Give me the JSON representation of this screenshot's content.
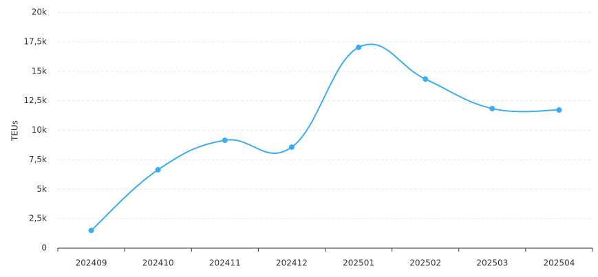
{
  "chart_data": {
    "type": "line",
    "y_label": "TEUs",
    "categories": [
      "202409",
      "202410",
      "202411",
      "202412",
      "202501",
      "202502",
      "202503",
      "202504"
    ],
    "values": [
      1500,
      6650,
      9150,
      8570,
      17030,
      14340,
      11840,
      11720
    ],
    "color": "#38adf3",
    "smooth": true,
    "ylim": [
      0,
      20000
    ],
    "yticks": [
      0,
      {
        "value": 2500,
        "label": "2,5k"
      },
      {
        "value": 5000,
        "label": "5k"
      },
      {
        "value": 7500,
        "label": "7,5k"
      },
      {
        "value": 10000,
        "label": "10k"
      },
      {
        "value": 12500,
        "label": "12,5k"
      },
      {
        "value": 15000,
        "label": "15k"
      },
      {
        "value": 17500,
        "label": "17,5k"
      },
      {
        "value": 20000,
        "label": "20k"
      }
    ],
    "grid": true
  }
}
